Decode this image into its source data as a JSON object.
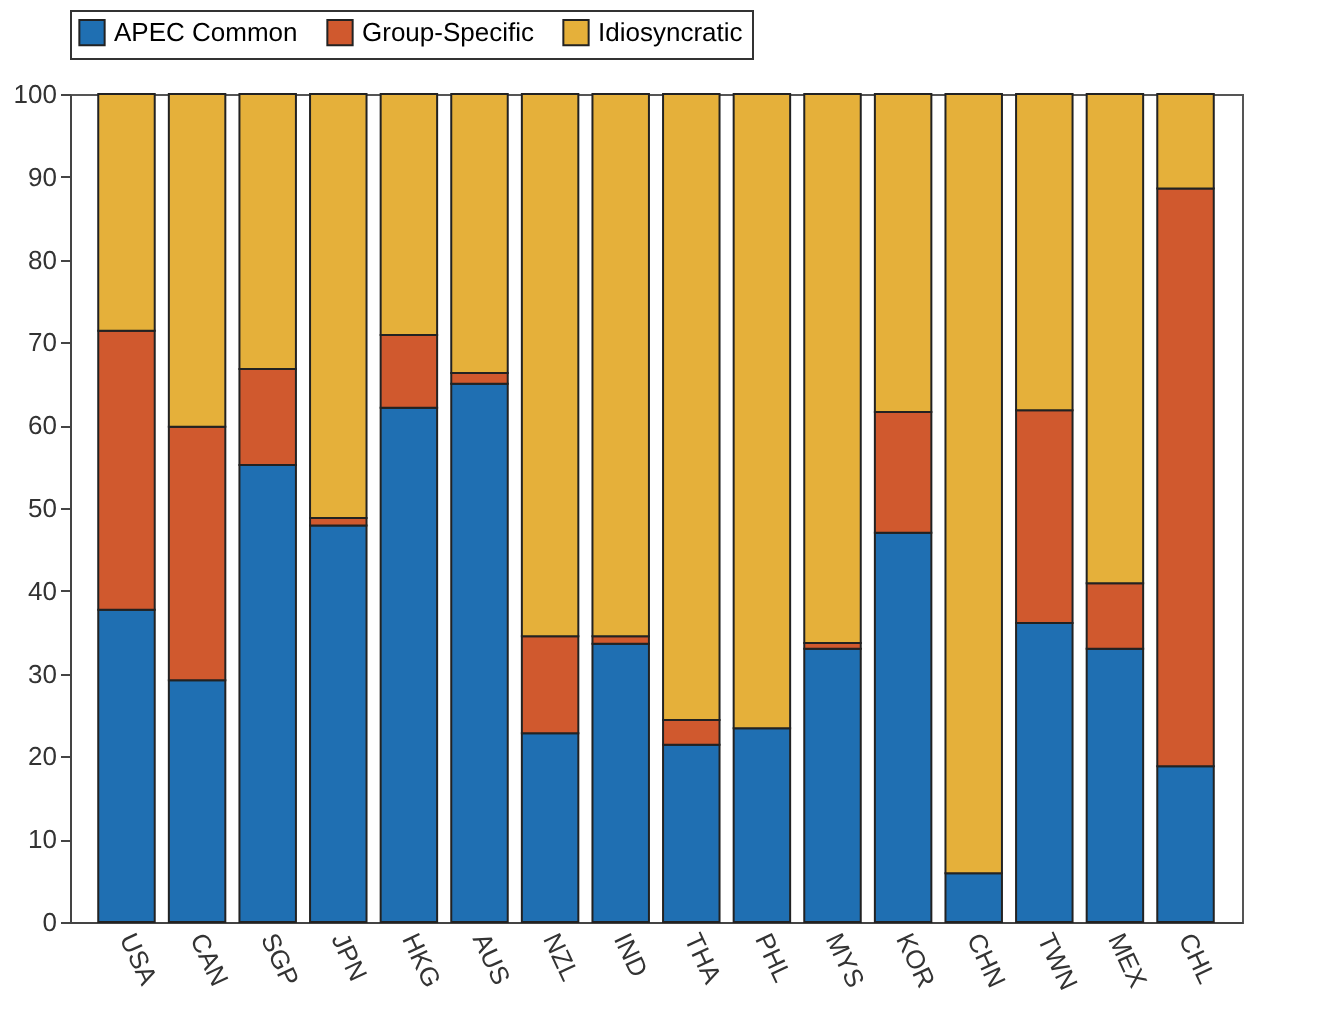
{
  "chart_data": {
    "type": "bar",
    "stacked": true,
    "categories": [
      "USA",
      "CAN",
      "SGP",
      "JPN",
      "HKG",
      "AUS",
      "NZL",
      "IND",
      "THA",
      "PHL",
      "MYS",
      "KOR",
      "CHN",
      "TWN",
      "MEX",
      "CHL"
    ],
    "series": [
      {
        "name": "APEC Common",
        "color": "#1f6fb2",
        "values": [
          37.7,
          29.2,
          55.2,
          47.9,
          62.1,
          65,
          22.8,
          33.6,
          21.4,
          23.4,
          33,
          47,
          5.9,
          36.1,
          33,
          18.8
        ]
      },
      {
        "name": "Group-Specific",
        "color": "#d0592e",
        "values": [
          33.7,
          30.6,
          11.6,
          0.9,
          8.8,
          1.3,
          11.7,
          0.9,
          3,
          null,
          0.7,
          14.6,
          null,
          25.7,
          7.9,
          69.8
        ]
      },
      {
        "name": "Idiosyncratic",
        "color": "#e5b03a",
        "values": [
          28.6,
          40.2,
          33.2,
          51.2,
          29.1,
          33.7,
          65.5,
          65.5,
          75.6,
          76.6,
          66.3,
          38.4,
          94.1,
          38.2,
          59.1,
          11.4
        ]
      }
    ],
    "ylim": [
      0,
      100
    ],
    "yticks": [
      0,
      10,
      20,
      30,
      40,
      50,
      60,
      70,
      80,
      90,
      100
    ],
    "grid": false,
    "legend": "top"
  }
}
